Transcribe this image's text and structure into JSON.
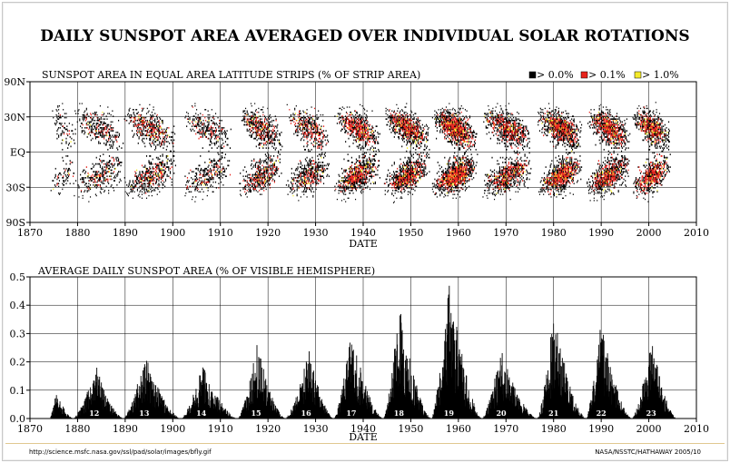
{
  "title": "DAILY SUNSPOT AREA AVERAGED OVER INDIVIDUAL SOLAR ROTATIONS",
  "footer": {
    "left": "http://science.msfc.nasa.gov/ssl/pad/solar/images/bfly.gif",
    "right": "NASA/NSSTC/HATHAWAY 2005/10"
  },
  "colors": {
    "low": "#000000",
    "mid": "#e8231c",
    "high": "#f4ea2a",
    "axis": "#000000",
    "grid": "#000000"
  },
  "chart_data": [
    {
      "type": "heatmap",
      "title": "SUNSPOT AREA IN EQUAL AREA LATITUDE STRIPS (% OF STRIP AREA)",
      "xlabel": "DATE",
      "ylabel": "",
      "xlim": [
        1870,
        2010
      ],
      "x_ticks": [
        1870,
        1880,
        1890,
        1900,
        1910,
        1920,
        1930,
        1940,
        1950,
        1960,
        1970,
        1980,
        1990,
        2000,
        2010
      ],
      "y_ticks": [
        "90N",
        "30N",
        "EQ",
        "30S",
        "90S"
      ],
      "grid": true,
      "legend": {
        "placement": "top-right",
        "entries": [
          {
            "label": "> 0.0%",
            "color": "#000000"
          },
          {
            "label": "> 0.1%",
            "color": "#e8231c"
          },
          {
            "label": "> 1.0%",
            "color": "#f4ea2a"
          }
        ]
      },
      "cycles": [
        {
          "start": 1874.0,
          "end": 1880.5,
          "max": 1877.0,
          "amplitude": 0.25
        },
        {
          "start": 1878.9,
          "end": 1891.5,
          "max": 1883.9,
          "amplitude": 0.5
        },
        {
          "start": 1889.6,
          "end": 1902.5,
          "max": 1894.1,
          "amplitude": 0.65
        },
        {
          "start": 1901.7,
          "end": 1914.0,
          "max": 1906.2,
          "amplitude": 0.45
        },
        {
          "start": 1913.6,
          "end": 1924.5,
          "max": 1917.6,
          "amplitude": 0.75
        },
        {
          "start": 1923.6,
          "end": 1934.5,
          "max": 1928.4,
          "amplitude": 0.7
        },
        {
          "start": 1933.8,
          "end": 1945.0,
          "max": 1937.4,
          "amplitude": 0.95
        },
        {
          "start": 1944.2,
          "end": 1955.5,
          "max": 1947.5,
          "amplitude": 1.0
        },
        {
          "start": 1954.3,
          "end": 1965.5,
          "max": 1957.9,
          "amplitude": 1.2
        },
        {
          "start": 1964.9,
          "end": 1977.0,
          "max": 1968.9,
          "amplitude": 0.9
        },
        {
          "start": 1976.5,
          "end": 1987.5,
          "max": 1979.9,
          "amplitude": 1.1
        },
        {
          "start": 1986.8,
          "end": 1997.5,
          "max": 1989.6,
          "amplitude": 1.05
        },
        {
          "start": 1996.4,
          "end": 2005.8,
          "max": 2000.5,
          "amplitude": 1.0
        }
      ]
    },
    {
      "type": "bar",
      "title": "AVERAGE DAILY SUNSPOT AREA (% OF VISIBLE HEMISPHERE)",
      "xlabel": "DATE",
      "ylabel": "",
      "xlim": [
        1870,
        2010
      ],
      "ylim": [
        0.0,
        0.5
      ],
      "x_ticks": [
        1870,
        1880,
        1890,
        1900,
        1910,
        1920,
        1930,
        1940,
        1950,
        1960,
        1970,
        1980,
        1990,
        2000,
        2010
      ],
      "y_ticks": [
        "0.0",
        "0.1",
        "0.2",
        "0.3",
        "0.4",
        "0.5"
      ],
      "grid": true,
      "cycle_labels": [
        {
          "label": "12",
          "x": 1883.5
        },
        {
          "label": "13",
          "x": 1894.0
        },
        {
          "label": "14",
          "x": 1906.0
        },
        {
          "label": "15",
          "x": 1917.5
        },
        {
          "label": "16",
          "x": 1928.0
        },
        {
          "label": "17",
          "x": 1937.5
        },
        {
          "label": "18",
          "x": 1947.5
        },
        {
          "label": "19",
          "x": 1958.0
        },
        {
          "label": "20",
          "x": 1969.0
        },
        {
          "label": "21",
          "x": 1980.0
        },
        {
          "label": "22",
          "x": 1990.0
        },
        {
          "label": "23",
          "x": 2000.5
        }
      ],
      "cycle_peaks": [
        {
          "start": 1874.0,
          "max": 1875.5,
          "end": 1879.0,
          "peak": 0.1
        },
        {
          "start": 1879.0,
          "max": 1883.9,
          "end": 1889.6,
          "peak": 0.19
        },
        {
          "start": 1889.6,
          "max": 1894.1,
          "end": 1901.7,
          "peak": 0.23
        },
        {
          "start": 1901.7,
          "max": 1906.2,
          "end": 1913.6,
          "peak": 0.19
        },
        {
          "start": 1913.6,
          "max": 1917.6,
          "end": 1923.6,
          "peak": 0.27
        },
        {
          "start": 1923.6,
          "max": 1928.4,
          "end": 1933.8,
          "peak": 0.25
        },
        {
          "start": 1933.8,
          "max": 1937.4,
          "end": 1944.2,
          "peak": 0.31
        },
        {
          "start": 1944.2,
          "max": 1947.5,
          "end": 1954.3,
          "peak": 0.41
        },
        {
          "start": 1954.3,
          "max": 1957.9,
          "end": 1964.9,
          "peak": 0.51
        },
        {
          "start": 1964.9,
          "max": 1968.9,
          "end": 1976.5,
          "peak": 0.25
        },
        {
          "start": 1976.5,
          "max": 1979.9,
          "end": 1986.8,
          "peak": 0.38
        },
        {
          "start": 1986.8,
          "max": 1989.6,
          "end": 1996.4,
          "peak": 0.36
        },
        {
          "start": 1996.4,
          "max": 2000.5,
          "end": 2005.8,
          "peak": 0.28
        }
      ]
    }
  ]
}
